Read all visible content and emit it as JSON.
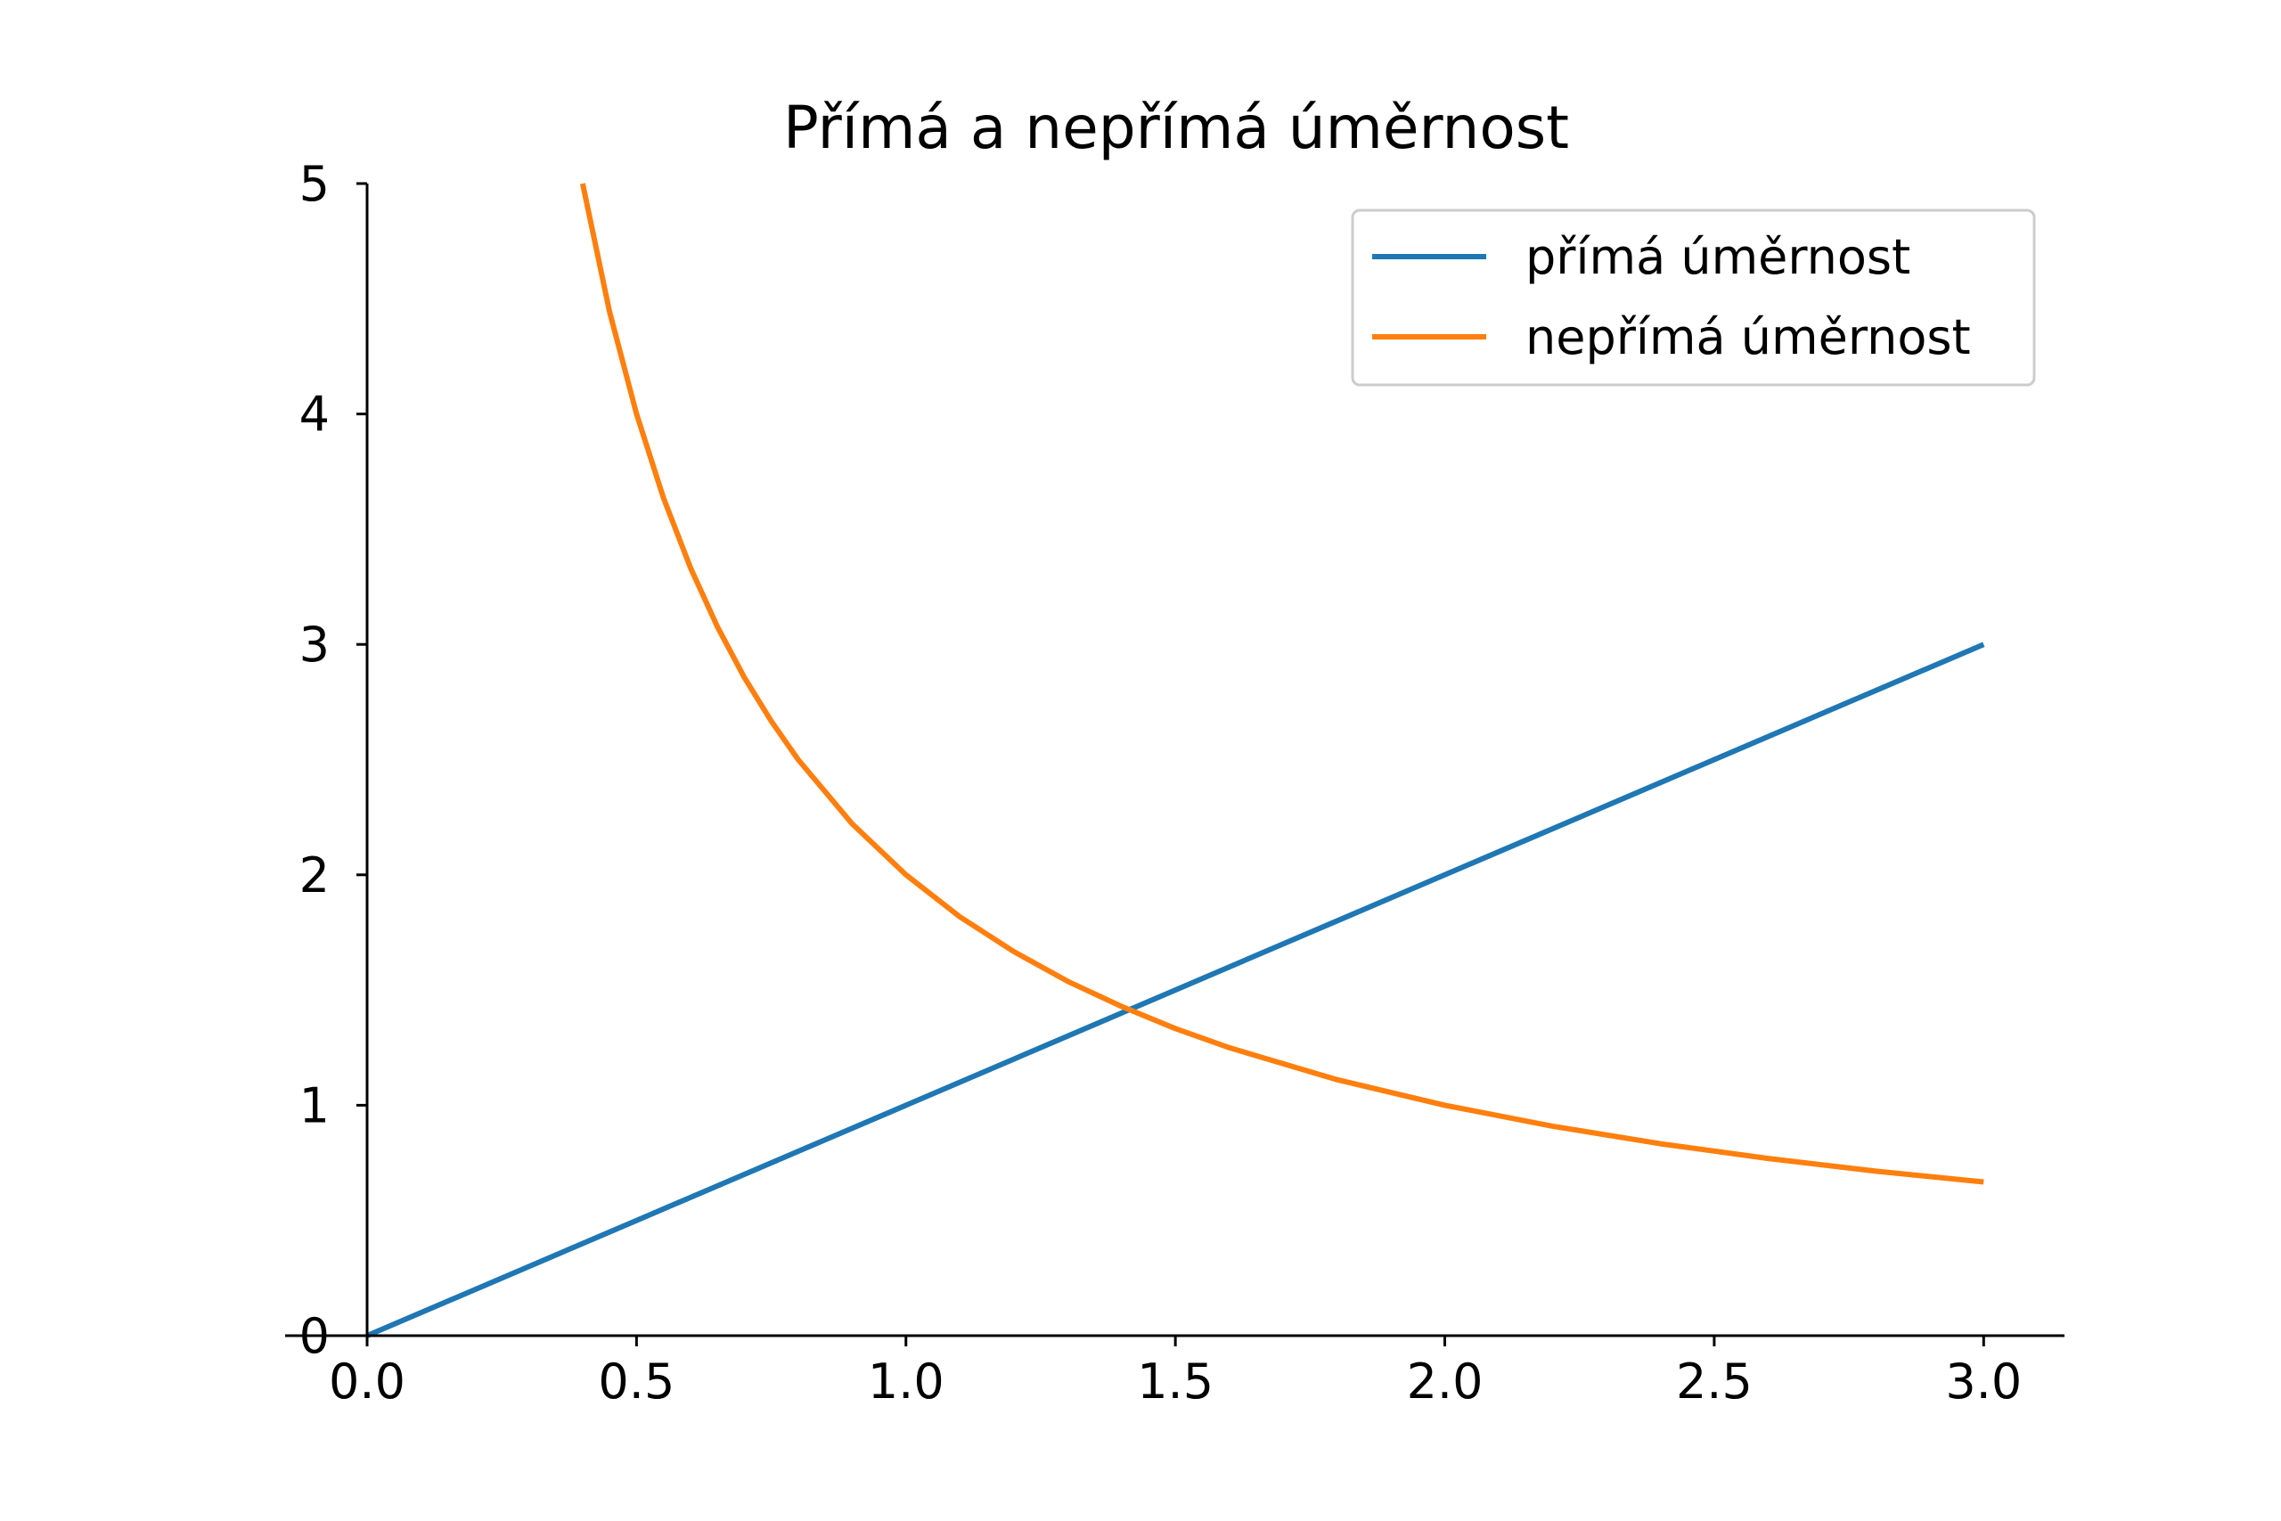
{
  "chart_data": {
    "type": "line",
    "title": "Přímá a nepřímá úměrnost",
    "xlabel": "",
    "ylabel": "",
    "xlim": [
      0,
      3.15
    ],
    "ylim": [
      0,
      5
    ],
    "x_ticks": [
      0.0,
      0.5,
      1.0,
      1.5,
      2.0,
      2.5,
      3.0
    ],
    "x_tick_labels": [
      "0.0",
      "0.5",
      "1.0",
      "1.5",
      "2.0",
      "2.5",
      "3.0"
    ],
    "y_ticks": [
      0,
      1,
      2,
      3,
      4,
      5
    ],
    "y_tick_labels": [
      "0",
      "1",
      "2",
      "3",
      "4",
      "5"
    ],
    "grid": false,
    "legend_position": "top-right",
    "series": [
      {
        "name": "přímá úměrnost",
        "color": "#1f77b4",
        "x": [
          0.0,
          0.5,
          1.0,
          1.5,
          2.0,
          2.5,
          3.0
        ],
        "y": [
          0.0,
          0.5,
          1.0,
          1.5,
          2.0,
          2.5,
          3.0
        ]
      },
      {
        "name": "nepřímá úměrnost",
        "color": "#ff7f0e",
        "x": [
          0.4,
          0.45,
          0.5,
          0.55,
          0.6,
          0.65,
          0.7,
          0.75,
          0.8,
          0.9,
          1.0,
          1.1,
          1.2,
          1.3,
          1.4,
          1.5,
          1.6,
          1.8,
          2.0,
          2.2,
          2.4,
          2.6,
          2.8,
          3.0
        ],
        "y": [
          5.0,
          4.444,
          4.0,
          3.636,
          3.333,
          3.077,
          2.857,
          2.667,
          2.5,
          2.222,
          2.0,
          1.818,
          1.667,
          1.538,
          1.429,
          1.333,
          1.25,
          1.111,
          1.0,
          0.909,
          0.833,
          0.769,
          0.714,
          0.667
        ]
      }
    ]
  }
}
